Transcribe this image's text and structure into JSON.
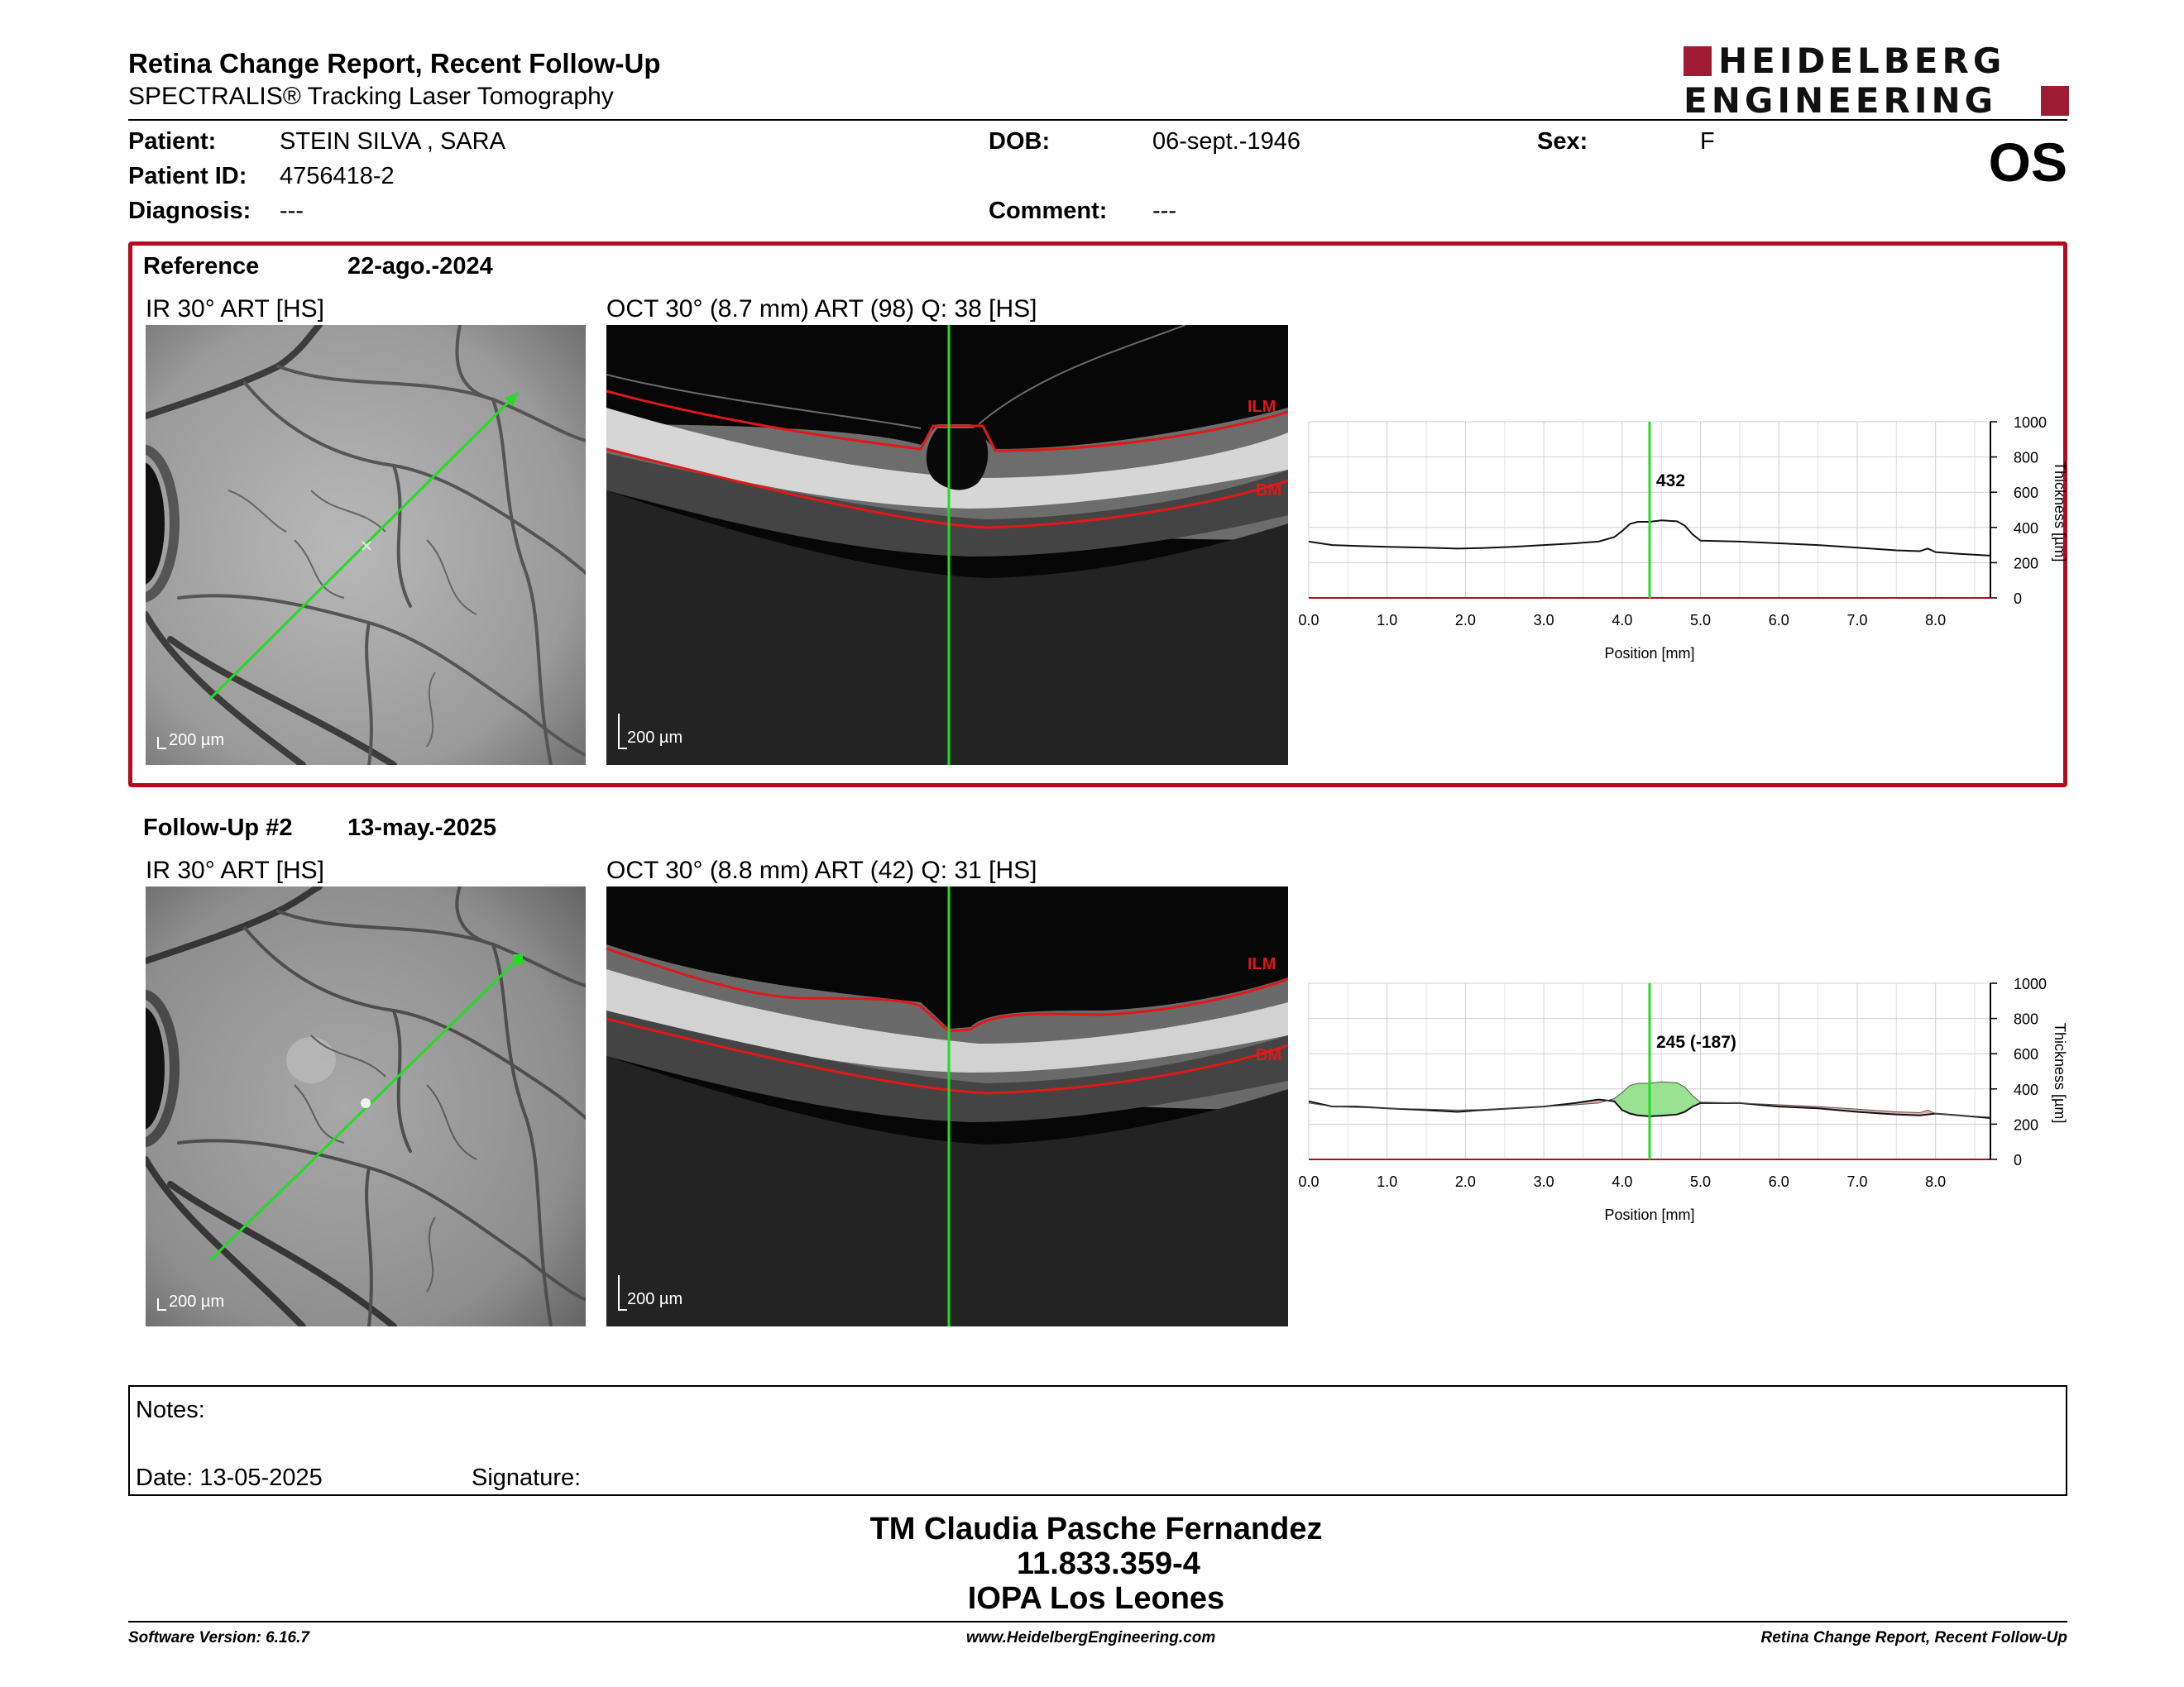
{
  "header": {
    "title": "Retina Change Report, Recent Follow-Up",
    "subtitle": "SPECTRALIS® Tracking Laser Tomography",
    "logo_line1": "HEIDELBERG",
    "logo_line2": "ENGINEERING",
    "eye": "OS"
  },
  "patient": {
    "name_label": "Patient:",
    "name": "STEIN SILVA , SARA",
    "id_label": "Patient ID:",
    "id": "4756418-2",
    "diagnosis_label": "Diagnosis:",
    "diagnosis": "---",
    "dob_label": "DOB:",
    "dob": "06-sept.-1946",
    "comment_label": "Comment:",
    "comment": "---",
    "sex_label": "Sex:",
    "sex": "F"
  },
  "reference": {
    "label": "Reference",
    "date": "22-ago.-2024",
    "ir_label": "IR 30° ART [HS]",
    "oct_label": "OCT 30° (8.7 mm) ART (98) Q: 38 [HS]",
    "ir_scale": "200 µm",
    "oct_scale": "200 µm",
    "ilm": "ILM",
    "bm": "BM"
  },
  "followup": {
    "label": "Follow-Up #2",
    "date": "13-may.-2025",
    "ir_label": "IR 30° ART [HS]",
    "oct_label": "OCT 30° (8.8 mm) ART (42) Q: 31 [HS]",
    "ir_scale": "200 µm",
    "oct_scale": "200 µm",
    "ilm": "ILM",
    "bm": "BM"
  },
  "notes": {
    "notes_label": "Notes:",
    "date_label": "Date: 13-05-2025",
    "signature_label": "Signature:"
  },
  "operator": {
    "line1": "TM Claudia Pasche Fernandez",
    "line2": "11.833.359-4",
    "line3": "IOPA Los Leones"
  },
  "footer": {
    "left": "Software Version: 6.16.7",
    "center": "www.HeidelbergEngineering.com",
    "right": "Retina Change Report, Recent Follow-Up"
  },
  "colors": {
    "accent_red": "#b10d1e",
    "cursor_green": "#22dd22",
    "logo_red": "#9e1b32"
  },
  "chart_data": [
    {
      "type": "line",
      "xlabel": "Position [mm]",
      "ylabel": "Thickness [µm]",
      "xlim": [
        0,
        8.7
      ],
      "ylim": [
        0,
        1000
      ],
      "xticks": [
        "0.0",
        "1.0",
        "2.0",
        "3.0",
        "4.0",
        "5.0",
        "6.0",
        "7.0",
        "8.0"
      ],
      "yticks": [
        "0",
        "200",
        "400",
        "600",
        "800",
        "1000"
      ],
      "cursor_x": 4.35,
      "cursor_label": "432",
      "grid": true,
      "x": [
        0,
        0.3,
        0.6,
        1.0,
        1.5,
        1.9,
        2.2,
        2.6,
        3.0,
        3.4,
        3.7,
        3.9,
        4.0,
        4.1,
        4.2,
        4.35,
        4.5,
        4.7,
        4.8,
        4.9,
        5.0,
        5.5,
        6.0,
        6.5,
        7.0,
        7.5,
        7.8,
        7.9,
        8.0,
        8.3,
        8.7
      ],
      "y": [
        320,
        300,
        295,
        290,
        285,
        280,
        283,
        290,
        300,
        310,
        320,
        345,
        380,
        420,
        432,
        432,
        440,
        435,
        410,
        360,
        325,
        320,
        310,
        300,
        285,
        270,
        265,
        280,
        260,
        250,
        240
      ]
    },
    {
      "type": "line",
      "xlabel": "Position [mm]",
      "ylabel": "Thickness [µm]",
      "xlim": [
        0,
        8.7
      ],
      "ylim": [
        0,
        1000
      ],
      "xticks": [
        "0.0",
        "1.0",
        "2.0",
        "3.0",
        "4.0",
        "5.0",
        "6.0",
        "7.0",
        "8.0"
      ],
      "yticks": [
        "0",
        "200",
        "400",
        "600",
        "800",
        "1000"
      ],
      "cursor_x": 4.35,
      "cursor_label": "245 (-187)",
      "grid": true,
      "x": [
        0,
        0.3,
        0.6,
        1.0,
        1.5,
        1.9,
        2.2,
        2.6,
        3.0,
        3.4,
        3.7,
        3.9,
        4.0,
        4.1,
        4.2,
        4.35,
        4.5,
        4.7,
        4.8,
        4.9,
        5.0,
        5.5,
        6.0,
        6.5,
        7.0,
        7.5,
        7.8,
        7.9,
        8.0,
        8.3,
        8.7
      ],
      "y": [
        330,
        300,
        300,
        290,
        280,
        270,
        280,
        290,
        300,
        320,
        340,
        330,
        280,
        260,
        250,
        245,
        248,
        255,
        270,
        300,
        320,
        320,
        300,
        290,
        270,
        255,
        250,
        255,
        260,
        250,
        235
      ]
    }
  ]
}
